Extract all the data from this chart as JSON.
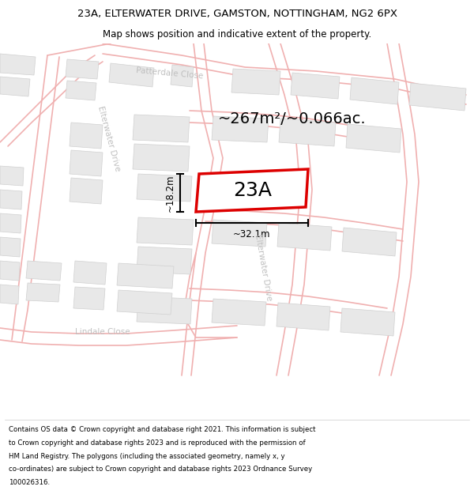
{
  "title_line1": "23A, ELTERWATER DRIVE, GAMSTON, NOTTINGHAM, NG2 6PX",
  "title_line2": "Map shows position and indicative extent of the property.",
  "area_text": "~267m²/~0.066ac.",
  "label_text": "23A",
  "dim_height": "~18.2m",
  "dim_width": "~32.1m",
  "footer_lines": [
    "Contains OS data © Crown copyright and database right 2021. This information is subject",
    "to Crown copyright and database rights 2023 and is reproduced with the permission of",
    "HM Land Registry. The polygons (including the associated geometry, namely x, y",
    "co-ordinates) are subject to Crown copyright and database rights 2023 Ordnance Survey",
    "100026316."
  ],
  "bg_color": "#f8f8f8",
  "road_color": "#f0b0b0",
  "building_color": "#e8e8e8",
  "building_edge": "#d0d0d0",
  "plot_color": "#dd0000",
  "street_label_color": "#c0c0c0",
  "title_color": "#000000",
  "title_fontsize": 9.5,
  "subtitle_fontsize": 8.5,
  "area_fontsize": 14,
  "label_fontsize": 18,
  "dim_fontsize": 8.5,
  "street_fontsize": 7.5,
  "footer_fontsize": 6.2,
  "road_lw": 1.2,
  "plot_lw": 2.5
}
